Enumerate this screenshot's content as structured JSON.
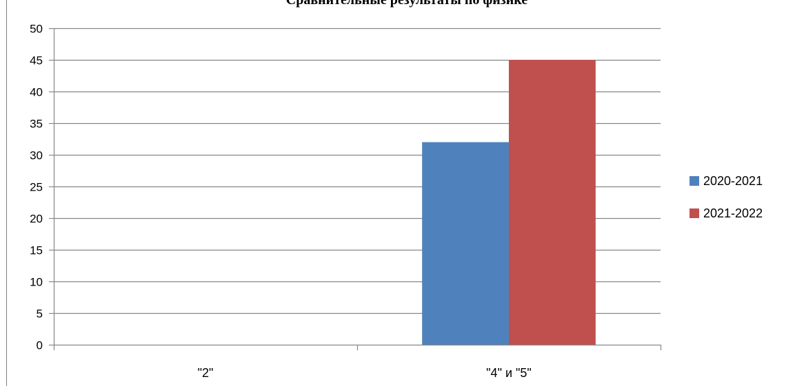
{
  "chart_data": {
    "type": "bar",
    "title": "Сравнительные результаты по физике",
    "categories": [
      "\"2\"",
      "\"4\" и \"5\""
    ],
    "series": [
      {
        "name": "2020-2021",
        "values": [
          0,
          32
        ],
        "color": "#4F81BD"
      },
      {
        "name": "2021-2022",
        "values": [
          0,
          45
        ],
        "color": "#C0504D"
      }
    ],
    "ylim": [
      0,
      50
    ],
    "yticks": [
      0,
      5,
      10,
      15,
      20,
      25,
      30,
      35,
      40,
      45,
      50
    ],
    "grid": true,
    "legend_position": "right"
  }
}
